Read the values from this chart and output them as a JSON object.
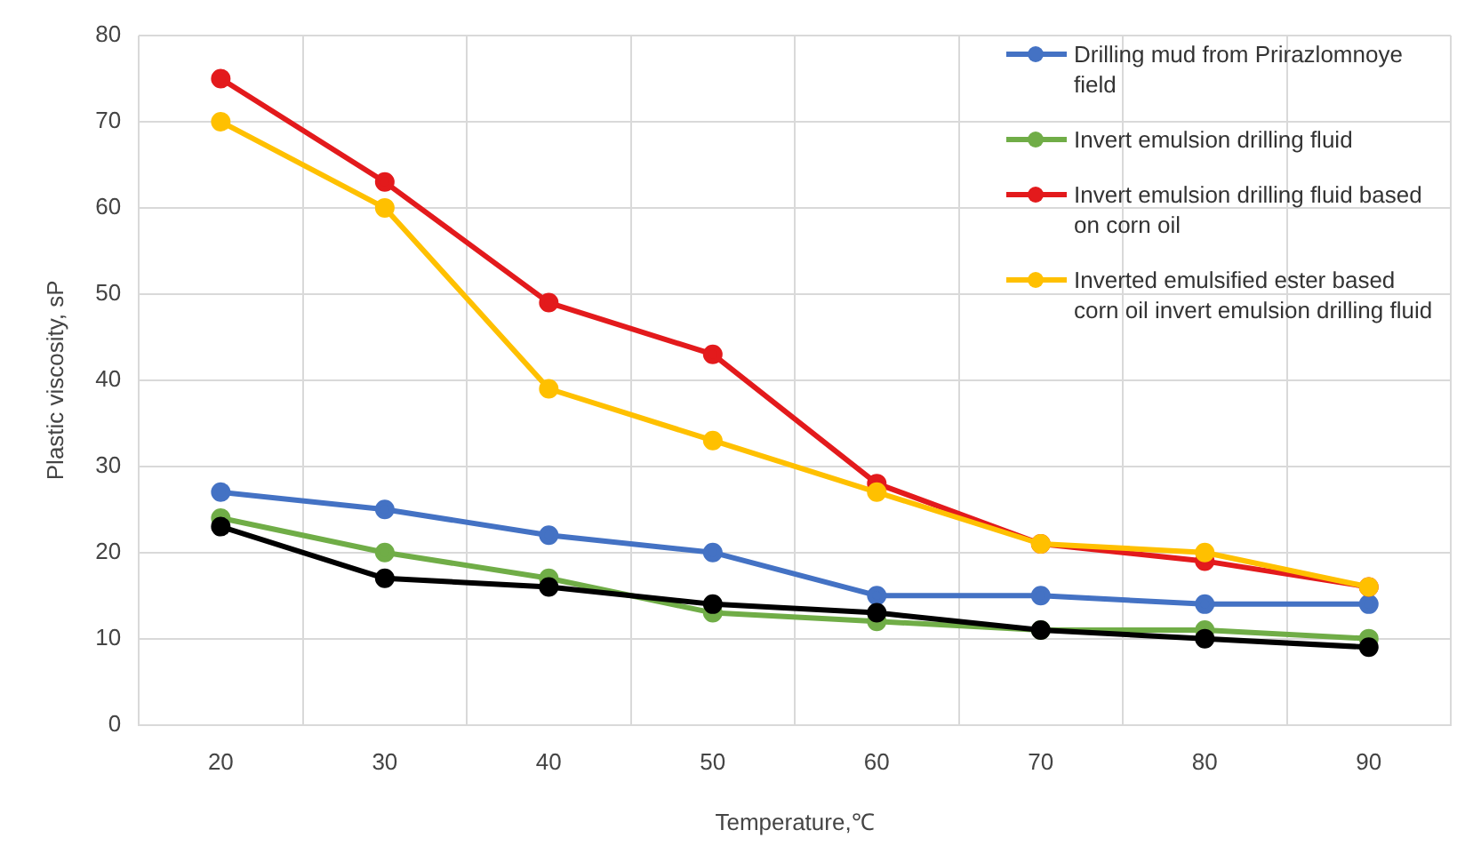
{
  "chart_data": {
    "type": "line",
    "xlabel": "Temperature,℃",
    "ylabel": "Plastic viscosity, sP",
    "categories": [
      "20",
      "30",
      "40",
      "50",
      "60",
      "70",
      "80",
      "90"
    ],
    "ylim": [
      0,
      80
    ],
    "yticks": [
      0,
      10,
      20,
      30,
      40,
      50,
      60,
      70,
      80
    ],
    "grid": true,
    "legend": "top right",
    "marker": "circle",
    "line_style": "solid",
    "series": [
      {
        "name": "Drilling mud from Prirazlomnoye field",
        "color": "#4472c4",
        "values": [
          27,
          25,
          22,
          20,
          15,
          15,
          14,
          14
        ]
      },
      {
        "name": "Invert emulsion drilling fluid",
        "color": "#70ad47",
        "values": [
          24,
          20,
          17,
          13,
          12,
          11,
          11,
          10
        ]
      },
      {
        "name": "Invert emulsion drilling fluid based on corn oil",
        "color": "#e31a1c",
        "values": [
          75,
          63,
          49,
          43,
          28,
          21,
          19,
          16
        ]
      },
      {
        "name": "Inverted emulsified ester based corn oil invert emulsion drilling fluid",
        "color": "#ffc000",
        "values": [
          70,
          60,
          39,
          33,
          27,
          21,
          20,
          16
        ]
      },
      {
        "color": "#000000",
        "values": [
          23,
          17,
          16,
          14,
          13,
          11,
          10,
          9
        ]
      }
    ]
  }
}
